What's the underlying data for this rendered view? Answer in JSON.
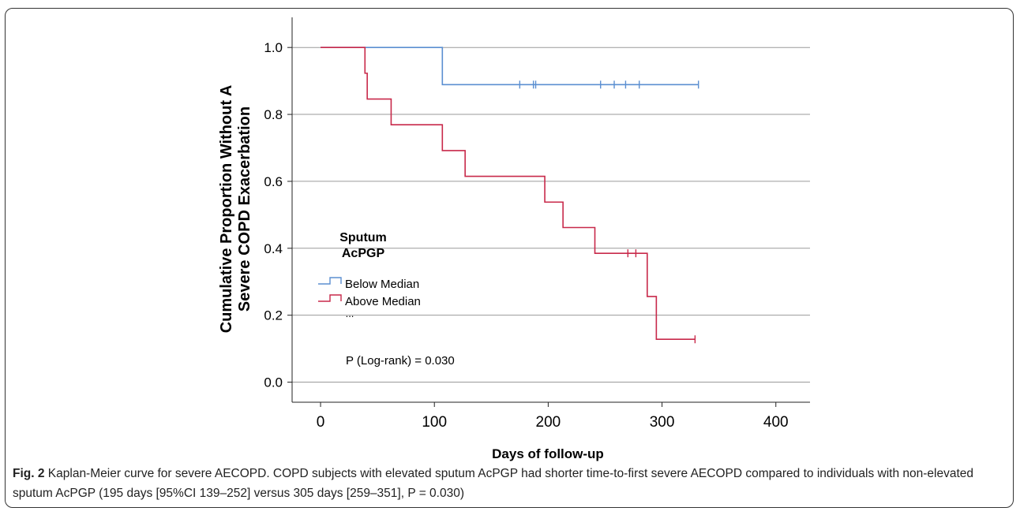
{
  "chart_data": {
    "type": "line",
    "subtype": "kaplan-meier",
    "xlabel": "Days of follow-up",
    "ylabel_lines": [
      "Cumulative Proportion Without A",
      "Severe COPD Exacerbation"
    ],
    "xlim": [
      -25,
      430
    ],
    "ylim": [
      -0.06,
      1.09
    ],
    "x_ticks": [
      0,
      100,
      200,
      300,
      400
    ],
    "y_ticks": [
      0.0,
      0.2,
      0.4,
      0.6,
      0.8,
      1.0
    ],
    "y_tick_labels": [
      "0.0",
      "0.2",
      "0.4",
      "0.6",
      "0.8",
      "1.0"
    ],
    "grid": "horizontal",
    "legend": {
      "title_lines": [
        "Sputum",
        "AcPGP"
      ],
      "ellipsis": "...",
      "position": "left-center"
    },
    "annotation": "P (Log-rank) = 0.030",
    "series": [
      {
        "name": "Below Median",
        "color": "#5b8fd1",
        "steps": [
          [
            0,
            1.0
          ],
          [
            107,
            0.889
          ]
        ],
        "end_x": 332,
        "censored": [
          [
            175,
            0.889
          ],
          [
            187,
            0.889
          ],
          [
            189,
            0.889
          ],
          [
            246,
            0.889
          ],
          [
            258,
            0.889
          ],
          [
            268,
            0.889
          ],
          [
            280,
            0.889
          ],
          [
            332,
            0.889
          ]
        ]
      },
      {
        "name": "Above Median",
        "color": "#c8294a",
        "steps": [
          [
            0,
            1.0
          ],
          [
            39,
            0.923
          ],
          [
            41,
            0.846
          ],
          [
            62,
            0.769
          ],
          [
            107,
            0.692
          ],
          [
            127,
            0.615
          ],
          [
            197,
            0.538
          ],
          [
            213,
            0.462
          ],
          [
            241,
            0.385
          ],
          [
            287,
            0.256
          ],
          [
            295,
            0.128
          ]
        ],
        "end_x": 329,
        "censored": [
          [
            270,
            0.385
          ],
          [
            277,
            0.385
          ],
          [
            329,
            0.128
          ]
        ]
      }
    ]
  },
  "caption": {
    "label": "Fig. 2",
    "text": "Kaplan-Meier curve for severe AECOPD. COPD subjects with elevated sputum AcPGP had shorter time-to-first severe AECOPD compared to individuals with non-elevated sputum AcPGP (195 days [95%CI 139–252] versus 305 days [259–351], P = 0.030)"
  }
}
